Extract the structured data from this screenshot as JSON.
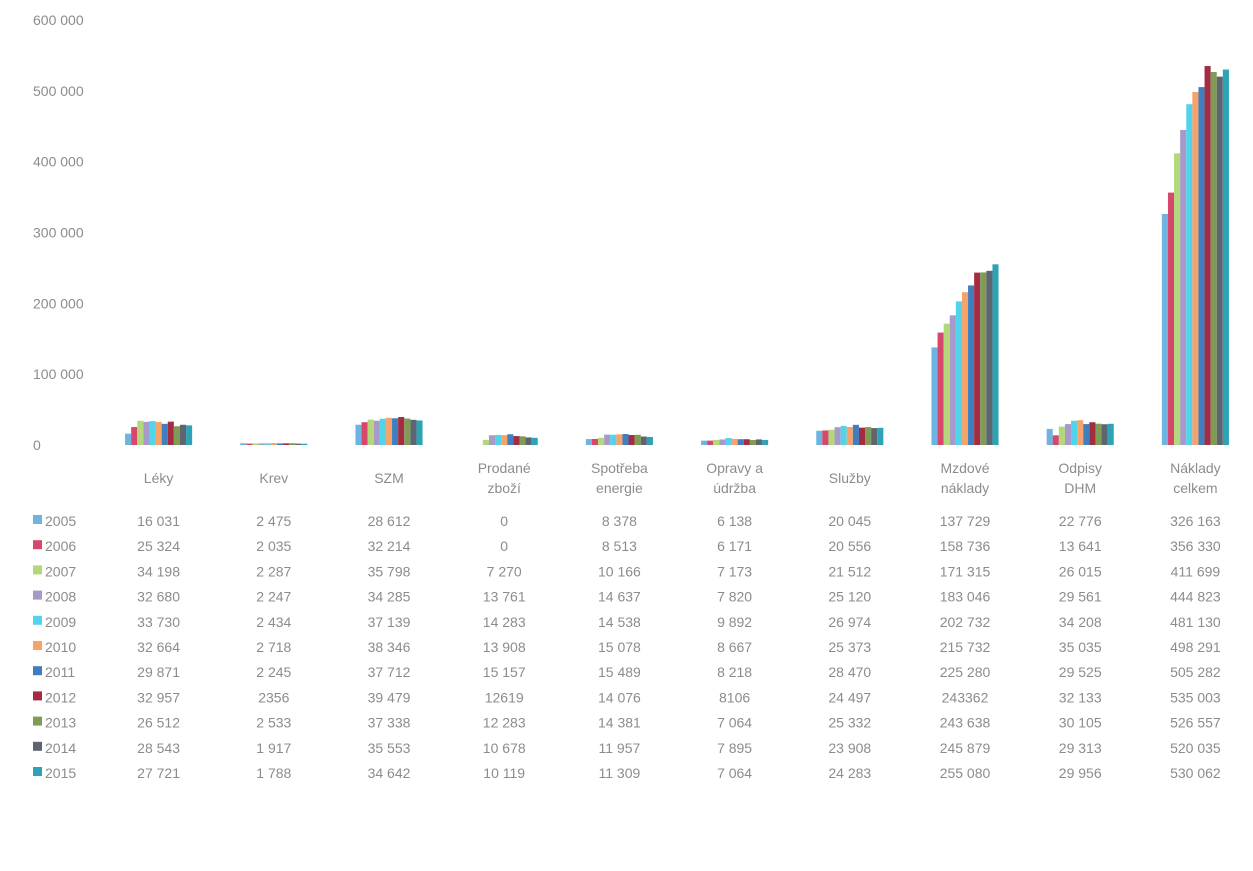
{
  "chart_data": {
    "type": "bar",
    "title": "",
    "xlabel": "",
    "ylabel": "",
    "ylim": [
      0,
      600000
    ],
    "yticks": [
      "0",
      "100 000",
      "200 000",
      "300 000",
      "400 000",
      "500 000",
      "600 000"
    ],
    "grid": false,
    "legend": "data-table",
    "categories": [
      [
        "Léky"
      ],
      [
        "Krev"
      ],
      [
        "SZM"
      ],
      [
        "Prodané",
        "zboží"
      ],
      [
        "Spotřeba",
        "energie"
      ],
      [
        "Opravy a",
        "údržba"
      ],
      [
        "Služby"
      ],
      [
        "Mzdové",
        "náklady"
      ],
      [
        "Odpisy",
        "DHM"
      ],
      [
        "Náklady",
        "celkem"
      ]
    ],
    "series": [
      {
        "name": "2005",
        "color": "#6fb3e0",
        "values": [
          16031,
          2475,
          28612,
          0,
          8378,
          6138,
          20045,
          137729,
          22776,
          326163
        ],
        "labels": [
          "16 031",
          "2 475",
          "28 612",
          "0",
          "8 378",
          "6 138",
          "20 045",
          "137 729",
          "22 776",
          "326 163"
        ]
      },
      {
        "name": "2006",
        "color": "#d7476b",
        "values": [
          25324,
          2035,
          32214,
          0,
          8513,
          6171,
          20556,
          158736,
          13641,
          356330
        ],
        "labels": [
          "25 324",
          "2 035",
          "32 214",
          "0",
          "8 513",
          "6 171",
          "20 556",
          "158 736",
          "13 641",
          "356 330"
        ]
      },
      {
        "name": "2007",
        "color": "#b3d77b",
        "values": [
          34198,
          2287,
          35798,
          7270,
          10166,
          7173,
          21512,
          171315,
          26015,
          411699
        ],
        "labels": [
          "34 198",
          "2 287",
          "35 798",
          "7 270",
          "10 166",
          "7 173",
          "21 512",
          "171 315",
          "26 015",
          "411 699"
        ]
      },
      {
        "name": "2008",
        "color": "#a79ac9",
        "values": [
          32680,
          2247,
          34285,
          13761,
          14637,
          7820,
          25120,
          183046,
          29561,
          444823
        ],
        "labels": [
          "32 680",
          "2 247",
          "34 285",
          "13 761",
          "14 637",
          "7 820",
          "25 120",
          "183 046",
          "29 561",
          "444 823"
        ]
      },
      {
        "name": "2009",
        "color": "#52d3ec",
        "values": [
          33730,
          2434,
          37139,
          14283,
          14538,
          9892,
          26974,
          202732,
          34208,
          481130
        ],
        "labels": [
          "33 730",
          "2 434",
          "37 139",
          "14 283",
          "14 538",
          "9 892",
          "26 974",
          "202 732",
          "34 208",
          "481 130"
        ]
      },
      {
        "name": "2010",
        "color": "#f7a26b",
        "values": [
          32664,
          2718,
          38346,
          13908,
          15078,
          8667,
          25373,
          215732,
          35035,
          498291
        ],
        "labels": [
          "32 664",
          "2 718",
          "38 346",
          "13 908",
          "15 078",
          "8 667",
          "25 373",
          "215 732",
          "35 035",
          "498 291"
        ]
      },
      {
        "name": "2011",
        "color": "#3f7fbd",
        "values": [
          29871,
          2245,
          37712,
          15157,
          15489,
          8218,
          28470,
          225280,
          29525,
          505282
        ],
        "labels": [
          "29 871",
          "2 245",
          "37 712",
          "15 157",
          "15 489",
          "8 218",
          "28 470",
          "225 280",
          "29 525",
          "505 282"
        ]
      },
      {
        "name": "2012",
        "color": "#a32b42",
        "values": [
          32957,
          2356,
          39479,
          12619,
          14076,
          8106,
          24497,
          243362,
          32133,
          535003
        ],
        "labels": [
          "32 957",
          "2356",
          "39 479",
          "12619",
          "14 076",
          "8106",
          "24 497",
          "243362",
          "32 133",
          "535 003"
        ]
      },
      {
        "name": "2013",
        "color": "#7f9c55",
        "values": [
          26512,
          2533,
          37338,
          12283,
          14381,
          7064,
          25332,
          243638,
          30105,
          526557
        ],
        "labels": [
          "26 512",
          "2 533",
          "37 338",
          "12 283",
          "14 381",
          "7 064",
          "25 332",
          "243 638",
          "30 105",
          "526 557"
        ]
      },
      {
        "name": "2014",
        "color": "#5e6470",
        "values": [
          28543,
          1917,
          35553,
          10678,
          11957,
          7895,
          23908,
          245879,
          29313,
          520035
        ],
        "labels": [
          "28 543",
          "1 917",
          "35 553",
          "10 678",
          "11 957",
          "7 895",
          "23 908",
          "245 879",
          "29 313",
          "520 035"
        ]
      },
      {
        "name": "2015",
        "color": "#2ea3b5",
        "values": [
          27721,
          1788,
          34642,
          10119,
          11309,
          7064,
          24283,
          255080,
          29956,
          530062
        ],
        "labels": [
          "27 721",
          "1 788",
          "34 642",
          "10 119",
          "11 309",
          "7 064",
          "24 283",
          "255 080",
          "29 956",
          "530 062"
        ]
      }
    ]
  }
}
